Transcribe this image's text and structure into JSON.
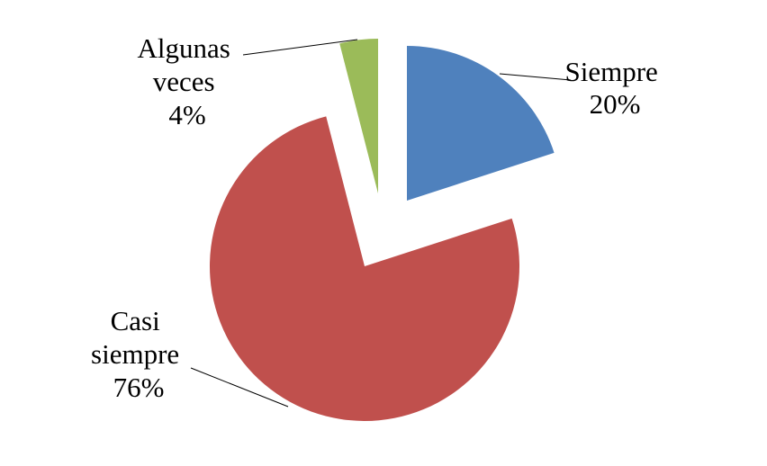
{
  "chart_data": {
    "type": "pie",
    "title": "",
    "exploded": true,
    "start_angle_deg": 0,
    "direction": "clockwise",
    "slices": [
      {
        "name": "Siempre",
        "value": 20,
        "label_lines": [
          "Siempre"
        ],
        "pct_label": "20%",
        "color": "#4F81BD"
      },
      {
        "name": "Casi siempre",
        "value": 76,
        "label_lines": [
          "Casi",
          "siempre"
        ],
        "pct_label": "76%",
        "color": "#C0504D"
      },
      {
        "name": "Algunas veces",
        "value": 4,
        "label_lines": [
          "Algunas",
          "veces"
        ],
        "pct_label": "4%",
        "color": "#9BBB59"
      }
    ]
  }
}
